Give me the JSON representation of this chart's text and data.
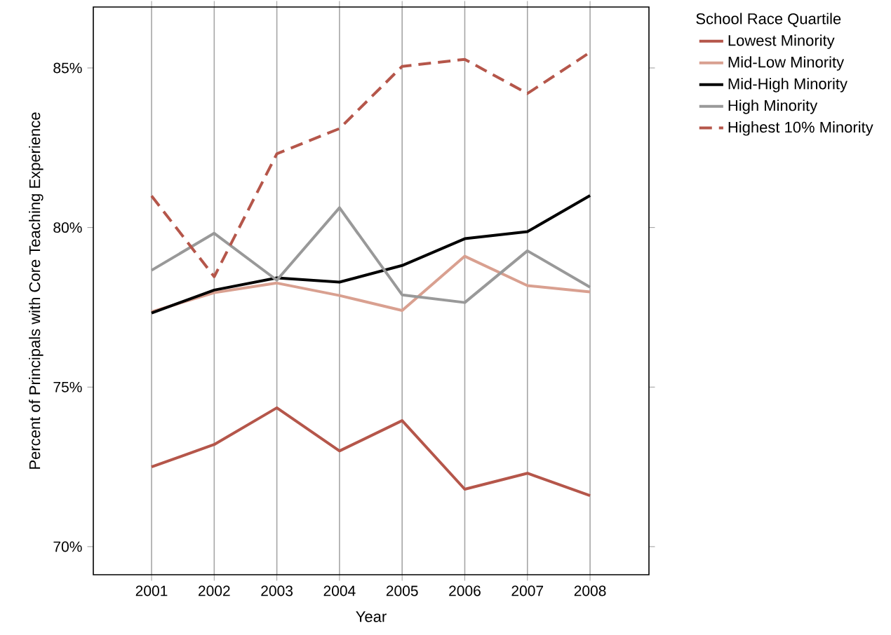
{
  "chart_data": {
    "type": "line",
    "xlabel": "Year",
    "ylabel": "Percent of Principals with Core Teaching Experience",
    "legend_title": "School Race Quartile",
    "x": [
      2001,
      2002,
      2003,
      2004,
      2005,
      2006,
      2007,
      2008
    ],
    "xlim": [
      2000.07,
      2008.94
    ],
    "ylim": [
      69.12,
      86.91
    ],
    "xticks": [
      2001,
      2002,
      2003,
      2004,
      2005,
      2006,
      2007,
      2008
    ],
    "yticks": [
      {
        "value": 70,
        "label": "70%"
      },
      {
        "value": 75,
        "label": "75%"
      },
      {
        "value": 80,
        "label": "80%"
      },
      {
        "value": 85,
        "label": "85%"
      }
    ],
    "grid": "x",
    "legend": "right",
    "series": [
      {
        "name": "Lowest Minority",
        "color": "#b5564a",
        "line_style": "solid",
        "values": [
          72.5,
          73.2,
          74.35,
          73.0,
          73.95,
          71.8,
          72.3,
          71.6
        ]
      },
      {
        "name": "Mid-Low Minority",
        "color": "#d9a090",
        "line_style": "solid",
        "values": [
          77.36,
          77.96,
          78.26,
          77.87,
          77.4,
          79.1,
          78.18,
          77.98
        ]
      },
      {
        "name": "Mid-High Minority",
        "color": "#000000",
        "line_style": "solid",
        "values": [
          77.32,
          78.04,
          78.42,
          78.29,
          78.81,
          79.65,
          79.87,
          81.0
        ]
      },
      {
        "name": "High Minority",
        "color": "#999999",
        "line_style": "solid",
        "values": [
          78.66,
          79.82,
          78.35,
          80.62,
          77.89,
          77.65,
          79.27,
          78.13
        ]
      },
      {
        "name": "Highest 10% Minority",
        "color": "#b5564a",
        "line_style": "dashed",
        "values": [
          80.99,
          78.46,
          82.31,
          83.1,
          85.05,
          85.27,
          84.2,
          85.49
        ]
      }
    ]
  }
}
